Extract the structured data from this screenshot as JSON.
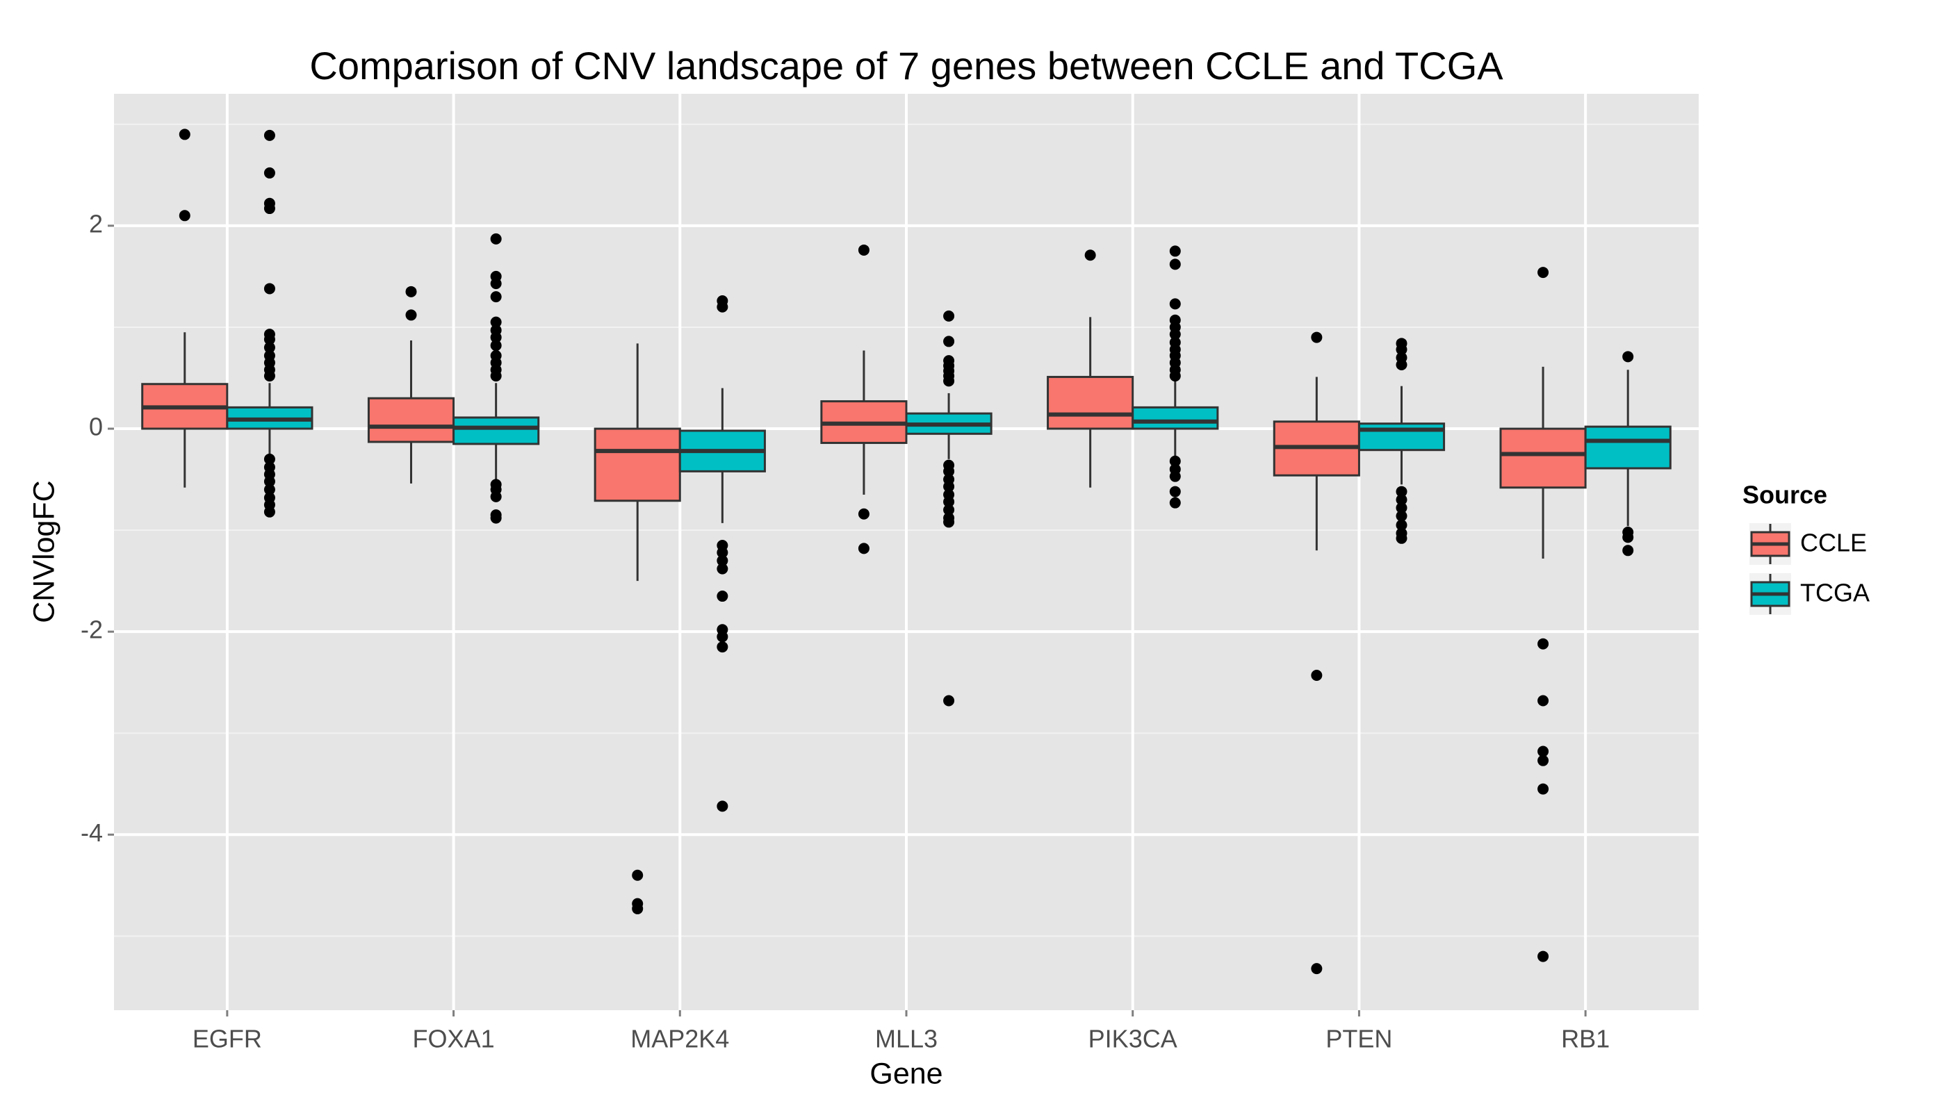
{
  "chart_data": {
    "type": "box",
    "title": "Comparison of CNV landscape of 7 genes between CCLE and TCGA",
    "x_label": "Gene",
    "y_label": "CNVlogFC",
    "legend_title": "Source",
    "legend_position": "right",
    "categories": [
      "EGFR",
      "FOXA1",
      "MAP2K4",
      "MLL3",
      "PIK3CA",
      "PTEN",
      "RB1"
    ],
    "ylim": [
      -5.73,
      3.3
    ],
    "yticks": [
      -4,
      -2,
      0,
      2
    ],
    "grid": true,
    "series": [
      {
        "name": "CCLE",
        "color": "#f8766d",
        "low": [
          -0.58,
          -0.54,
          -1.5,
          -0.65,
          -0.58,
          -1.2,
          -1.28
        ],
        "q1": [
          0,
          -0.13,
          -0.71,
          -0.14,
          0,
          -0.46,
          -0.58
        ],
        "median": [
          0.21,
          0.02,
          -0.22,
          0.05,
          0.14,
          -0.18,
          -0.25
        ],
        "q3": [
          0.44,
          0.3,
          0,
          0.27,
          0.51,
          0.07,
          0
        ],
        "high": [
          0.95,
          0.87,
          0.84,
          0.77,
          1.1,
          0.51,
          0.61
        ],
        "outliers": [
          [
            2.9,
            2.1
          ],
          [
            1.35,
            1.12
          ],
          [
            -4.4,
            -4.68,
            -4.73
          ],
          [
            1.76,
            -0.84,
            -1.18
          ],
          [
            1.71
          ],
          [
            0.9,
            -2.43,
            -5.32
          ],
          [
            1.54,
            -2.12,
            -2.68,
            -3.18,
            -3.27,
            -3.55,
            -5.2
          ]
        ]
      },
      {
        "name": "TCGA",
        "color": "#00bfc4",
        "low": [
          -0.25,
          -0.5,
          -0.93,
          -0.3,
          -0.28,
          -0.55,
          -0.96
        ],
        "q1": [
          0,
          -0.15,
          -0.42,
          -0.05,
          0,
          -0.21,
          -0.39
        ],
        "median": [
          0.09,
          0.01,
          -0.22,
          0.04,
          0.07,
          -0.01,
          -0.12
        ],
        "q3": [
          0.21,
          0.11,
          -0.02,
          0.15,
          0.21,
          0.05,
          0.02
        ],
        "high": [
          0.45,
          0.45,
          0.4,
          0.35,
          0.5,
          0.42,
          0.58
        ],
        "outliers": [
          [
            2.89,
            2.52,
            2.22,
            2.17,
            1.38,
            0.93,
            0.88,
            0.8,
            0.72,
            0.65,
            0.58,
            0.52,
            -0.3,
            -0.38,
            -0.45,
            -0.52,
            -0.6,
            -0.68,
            -0.75,
            -0.82
          ],
          [
            1.87,
            1.5,
            1.43,
            1.3,
            1.05,
            0.97,
            0.9,
            0.82,
            0.72,
            0.65,
            0.58,
            0.52,
            -0.55,
            -0.6,
            -0.67,
            -0.85,
            -0.88
          ],
          [
            1.26,
            1.2,
            -1.15,
            -1.22,
            -1.3,
            -1.38,
            -1.65,
            -1.98,
            -2.05,
            -2.15,
            -3.72
          ],
          [
            1.11,
            0.86,
            0.67,
            0.62,
            0.57,
            0.52,
            0.47,
            -0.36,
            -0.42,
            -0.5,
            -0.57,
            -0.65,
            -0.72,
            -0.8,
            -0.88,
            -0.92,
            -2.68
          ],
          [
            1.75,
            1.62,
            1.23,
            1.07,
            1.0,
            0.93,
            0.85,
            0.78,
            0.72,
            0.65,
            0.58,
            0.52,
            -0.32,
            -0.4,
            -0.47,
            -0.62,
            -0.73
          ],
          [
            0.84,
            0.78,
            0.7,
            0.63,
            -0.62,
            -0.7,
            -0.78,
            -0.86,
            -0.95,
            -1.03,
            -1.08
          ],
          [
            0.71,
            -1.02,
            -1.07,
            -1.2
          ]
        ]
      }
    ]
  }
}
